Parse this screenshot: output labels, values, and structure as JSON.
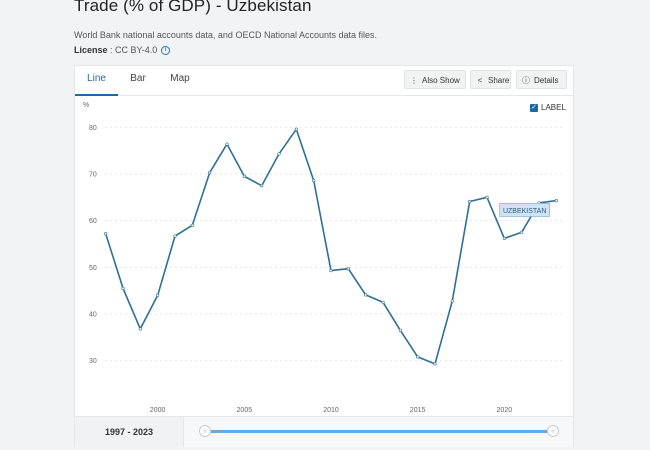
{
  "header": {
    "title": "Trade (% of GDP) - Uzbekistan",
    "source": "World Bank national accounts data, and OECD National Accounts data files.",
    "license_label": "License",
    "license_value": " : CC BY-4.0"
  },
  "tabs": [
    {
      "label": "Line",
      "active": true
    },
    {
      "label": "Bar",
      "active": false
    },
    {
      "label": "Map",
      "active": false
    }
  ],
  "toolbar": {
    "also_show": "Also Show",
    "share": "Share",
    "details": "Details"
  },
  "label_toggle": {
    "label": "LABEL",
    "checked": true
  },
  "chart_data": {
    "type": "line",
    "ylabel": "%",
    "ylim": [
      25,
      85
    ],
    "yticks": [
      30,
      40,
      50,
      60,
      70,
      80
    ],
    "xlim": [
      1996.5,
      2023.5
    ],
    "xticks": [
      2000,
      2005,
      2010,
      2015,
      2020
    ],
    "grid": true,
    "series": [
      {
        "name": "UZBEKISTAN",
        "color": "#2f6f95",
        "x": [
          1997,
          1998,
          1999,
          2000,
          2001,
          2002,
          2003,
          2004,
          2005,
          2006,
          2007,
          2008,
          2009,
          2010,
          2011,
          2012,
          2013,
          2014,
          2015,
          2016,
          2017,
          2018,
          2019,
          2020,
          2021,
          2022,
          2023
        ],
        "values": [
          57.2,
          45.5,
          36.8,
          44.0,
          56.7,
          59.0,
          70.3,
          76.4,
          69.5,
          67.5,
          74.3,
          79.6,
          68.6,
          49.3,
          49.7,
          44.1,
          42.5,
          36.5,
          30.8,
          29.3,
          42.8,
          64.1,
          65.0,
          56.2,
          57.5,
          63.8,
          64.3
        ]
      }
    ]
  },
  "footer": {
    "range": "1997 - 2023",
    "slider": {
      "start": 0,
      "end": 1
    }
  }
}
